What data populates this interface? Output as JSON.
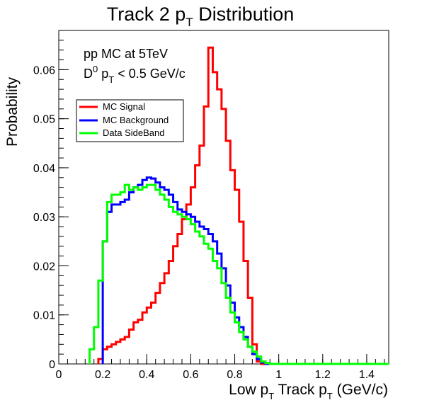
{
  "chart_data": {
    "type": "line",
    "title_main": "Track 2 p",
    "title_sub": "T",
    "title_rest": " Distribution",
    "xlabel_main": "Low p",
    "xlabel_sub1": "T",
    "xlabel_mid": " Track p",
    "xlabel_sub2": "T",
    "xlabel_rest": " (GeV/c)",
    "ylabel": "Probability",
    "xlim": [
      0,
      1.5
    ],
    "ylim": [
      0,
      0.068
    ],
    "x_ticks": [
      "0",
      "0.2",
      "0.4",
      "0.6",
      "0.8",
      "1",
      "1.2",
      "1.4"
    ],
    "x_tick_values": [
      0,
      0.2,
      0.4,
      0.6,
      0.8,
      1.0,
      1.2,
      1.4
    ],
    "y_ticks": [
      "0",
      "0.01",
      "0.02",
      "0.03",
      "0.04",
      "0.05",
      "0.06"
    ],
    "y_tick_values": [
      0,
      0.01,
      0.02,
      0.03,
      0.04,
      0.05,
      0.06
    ],
    "annotation_line1": "pp MC at 5TeV",
    "annotation_d": "D",
    "annotation_sup": "0",
    "annotation_p": " p",
    "annotation_sub": "T",
    "annotation_rest": " < 0.5 GeV/c",
    "legend": [
      {
        "label": "MC Signal",
        "color": "#ff0000"
      },
      {
        "label": "MC Background",
        "color": "#0000ff"
      },
      {
        "label": "Data SideBand",
        "color": "#00ff00"
      }
    ],
    "bin_width": 0.02,
    "series": [
      {
        "name": "MC Signal",
        "color": "#ff0000",
        "x": [
          0.18,
          0.2,
          0.22,
          0.24,
          0.26,
          0.28,
          0.3,
          0.32,
          0.34,
          0.36,
          0.38,
          0.4,
          0.42,
          0.44,
          0.46,
          0.48,
          0.5,
          0.52,
          0.54,
          0.56,
          0.58,
          0.6,
          0.62,
          0.64,
          0.66,
          0.68,
          0.7,
          0.72,
          0.74,
          0.76,
          0.78,
          0.8,
          0.82,
          0.84,
          0.86,
          0.88,
          0.9
        ],
        "values": [
          0.001,
          0.003,
          0.0035,
          0.004,
          0.0045,
          0.005,
          0.0055,
          0.007,
          0.0085,
          0.009,
          0.0105,
          0.0115,
          0.0125,
          0.0145,
          0.0165,
          0.0185,
          0.021,
          0.024,
          0.0265,
          0.0295,
          0.0325,
          0.036,
          0.0405,
          0.0445,
          0.0525,
          0.0645,
          0.0595,
          0.056,
          0.052,
          0.0455,
          0.0395,
          0.0355,
          0.029,
          0.021,
          0.0135,
          0.004,
          0.0005
        ]
      },
      {
        "name": "MC Background",
        "color": "#0000ff",
        "x": [
          0.2,
          0.22,
          0.24,
          0.26,
          0.28,
          0.3,
          0.32,
          0.34,
          0.36,
          0.38,
          0.4,
          0.42,
          0.44,
          0.46,
          0.48,
          0.5,
          0.52,
          0.54,
          0.56,
          0.58,
          0.6,
          0.62,
          0.64,
          0.66,
          0.68,
          0.7,
          0.72,
          0.74,
          0.76,
          0.78,
          0.8,
          0.82,
          0.84,
          0.86,
          0.88,
          0.9,
          0.92
        ],
        "values": [
          0.025,
          0.031,
          0.0325,
          0.0325,
          0.033,
          0.0335,
          0.035,
          0.036,
          0.0365,
          0.0375,
          0.038,
          0.0378,
          0.037,
          0.036,
          0.0355,
          0.0345,
          0.033,
          0.0315,
          0.031,
          0.0305,
          0.03,
          0.029,
          0.028,
          0.0275,
          0.0265,
          0.025,
          0.0225,
          0.0195,
          0.016,
          0.0125,
          0.0095,
          0.0075,
          0.0055,
          0.0035,
          0.002,
          0.001,
          0.0003
        ]
      },
      {
        "name": "Data SideBand",
        "color": "#00ff00",
        "x": [
          0.14,
          0.16,
          0.18,
          0.2,
          0.22,
          0.24,
          0.26,
          0.28,
          0.3,
          0.32,
          0.34,
          0.36,
          0.38,
          0.4,
          0.42,
          0.44,
          0.46,
          0.48,
          0.5,
          0.52,
          0.54,
          0.56,
          0.58,
          0.6,
          0.62,
          0.64,
          0.66,
          0.68,
          0.7,
          0.72,
          0.74,
          0.76,
          0.78,
          0.8,
          0.82,
          0.84,
          0.86,
          0.88,
          0.9,
          0.92,
          0.94
        ],
        "values": [
          0.003,
          0.0075,
          0.017,
          0.025,
          0.033,
          0.0345,
          0.0345,
          0.035,
          0.0365,
          0.0355,
          0.036,
          0.0355,
          0.036,
          0.0365,
          0.0365,
          0.0355,
          0.0345,
          0.0335,
          0.032,
          0.031,
          0.0305,
          0.03,
          0.0295,
          0.0285,
          0.027,
          0.026,
          0.0245,
          0.0235,
          0.021,
          0.0195,
          0.0165,
          0.0135,
          0.0105,
          0.0085,
          0.0065,
          0.005,
          0.0035,
          0.0025,
          0.0015,
          0.0005,
          0.0002
        ]
      }
    ]
  }
}
